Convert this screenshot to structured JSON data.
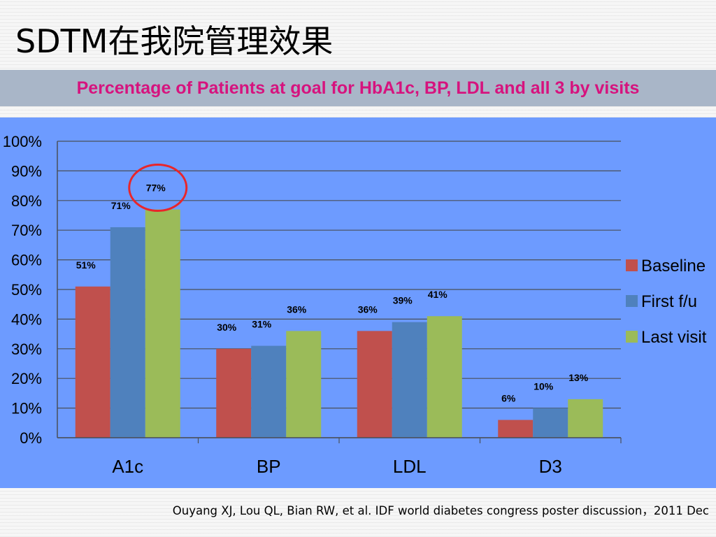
{
  "slide": {
    "title": "SDTM在我院管理效果",
    "citation": "Ouyang XJ, Lou QL, Bian RW, et al. IDF world diabetes congress poster discussion，2011 Dec"
  },
  "chart_data": {
    "type": "bar",
    "title": "Percentage of Patients at goal for HbA1c, BP, LDL and all 3 by visits",
    "categories": [
      "A1c",
      "BP",
      "LDL",
      "D3"
    ],
    "series": [
      {
        "name": "Baseline",
        "values": [
          51,
          30,
          36,
          6
        ],
        "labels": [
          "51%",
          "30%",
          "36%",
          "6%"
        ]
      },
      {
        "name": "First f/u",
        "values": [
          71,
          31,
          39,
          10
        ],
        "labels": [
          "71%",
          "31%",
          "39%",
          "10%"
        ]
      },
      {
        "name": "Last visit",
        "values": [
          77,
          36,
          41,
          13
        ],
        "labels": [
          "77%",
          "36%",
          "41%",
          "13%"
        ]
      }
    ],
    "ylim": [
      0,
      100
    ],
    "yticks": [
      "0%",
      "10%",
      "20%",
      "30%",
      "40%",
      "50%",
      "60%",
      "70%",
      "80%",
      "90%",
      "100%"
    ],
    "grid": true,
    "legend": "right",
    "colors": {
      "Baseline": "#c0504d",
      "First f/u": "#4f81bd",
      "Last visit": "#9bbb59",
      "plot_background": "#6d9bff",
      "highlight_circle": "#e8262b"
    },
    "annotation": {
      "type": "circle",
      "category": "A1c",
      "series": "Last visit"
    }
  }
}
